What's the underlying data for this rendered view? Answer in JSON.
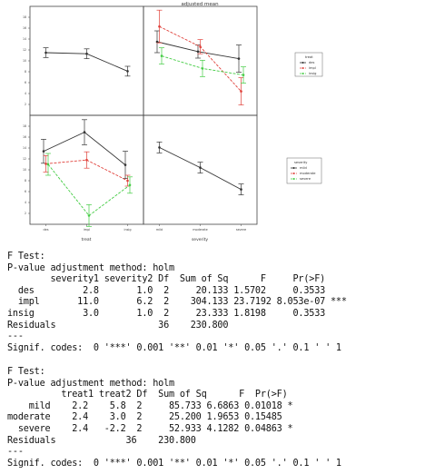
{
  "panels": {
    "top_title": "adjusted mean",
    "x_axis_bottom_left": "treat",
    "x_axis_bottom_right": "severity",
    "legend_treat": {
      "title": "treat",
      "items": [
        "des",
        "impl",
        "insig"
      ]
    },
    "legend_severity": {
      "title": "severity",
      "items": [
        "mild",
        "moderate",
        "severe"
      ]
    },
    "colors": {
      "black": "#333333",
      "red": "#e0403a",
      "green": "#44cc44",
      "grey": "#666666"
    }
  },
  "chart_data": [
    {
      "type": "line",
      "panel": "top-left",
      "categories": [
        "des",
        "impl",
        "insig"
      ],
      "series": [
        {
          "values": [
            11.5,
            11.3,
            8.1
          ],
          "ci": [
            0.9,
            0.9,
            0.9
          ]
        }
      ],
      "ylim": [
        0,
        20
      ],
      "ytick_labels": [
        "0",
        "2",
        "4",
        "6",
        "8",
        "10",
        "12",
        "14",
        "16",
        "18"
      ]
    },
    {
      "type": "line",
      "panel": "top-right",
      "categories": [
        "mild",
        "moderate",
        "severe"
      ],
      "series": [
        {
          "name": "des",
          "color": "#333333",
          "values": [
            13.5,
            11.7,
            10.4
          ],
          "ci": [
            2.0,
            1.2,
            2.5
          ]
        },
        {
          "name": "impl",
          "color": "#e0403a",
          "values": [
            16.3,
            12.6,
            4.4
          ],
          "ci": [
            3.0,
            1.3,
            2.5
          ]
        },
        {
          "name": "insig",
          "color": "#44cc44",
          "values": [
            10.9,
            8.6,
            7.4
          ],
          "ci": [
            1.5,
            1.5,
            1.5
          ]
        }
      ],
      "ylim": [
        0,
        20
      ]
    },
    {
      "type": "line",
      "panel": "bottom-left",
      "categories": [
        "des",
        "impl",
        "insig"
      ],
      "series": [
        {
          "name": "mild",
          "color": "#333333",
          "values": [
            13.4,
            16.9,
            10.9
          ],
          "ci": [
            2.2,
            2.3,
            2.5
          ]
        },
        {
          "name": "moderate",
          "color": "#e0403a",
          "values": [
            11.1,
            11.8,
            8.0
          ],
          "ci": [
            1.5,
            1.5,
            1.0
          ]
        },
        {
          "name": "severe",
          "color": "#44cc44",
          "values": [
            11.0,
            1.6,
            7.2
          ],
          "ci": [
            2.0,
            2.0,
            1.5
          ]
        }
      ],
      "ylim": [
        0,
        20
      ],
      "ytick_labels": [
        "0",
        "2",
        "4",
        "6",
        "8",
        "10",
        "12",
        "14",
        "16",
        "18"
      ]
    },
    {
      "type": "line",
      "panel": "bottom-right",
      "categories": [
        "mild",
        "moderate",
        "severe"
      ],
      "series": [
        {
          "values": [
            14.1,
            10.4,
            6.4
          ],
          "ci": [
            1.0,
            1.0,
            1.0
          ]
        }
      ],
      "ylim": [
        0,
        20
      ]
    }
  ],
  "output": {
    "ftest1": {
      "lines": [
        "F Test:",
        "P-value adjustment method: holm",
        "        severity1 severity2 Df  Sum of Sq      F     Pr(>F)",
        "  des         2.8       1.0  2     20.133 1.5702     0.3533",
        "  impl       11.0       6.2  2    304.133 23.7192 8.053e-07 ***",
        "insig         3.0       1.0  2     23.333 1.8198     0.3533",
        "Residuals                   36    230.800",
        "---",
        "Signif. codes:  0 '***' 0.001 '**' 0.01 '*' 0.05 '.' 0.1 ' ' 1"
      ]
    },
    "ftest2": {
      "lines": [
        "F Test:",
        "P-value adjustment method: holm",
        "          treat1 treat2 Df  Sum of Sq      F  Pr(>F)",
        "    mild    2.2    5.8  2     85.733 6.6863 0.01018 *",
        "moderate    2.4    3.0  2     25.200 1.9653 0.15485",
        "  severe    2.4   -2.2  2     52.933 4.1282 0.04863 *",
        "Residuals             36    230.800",
        "---",
        "Signif. codes:  0 '***' 0.001 '**' 0.01 '*' 0.05 '.' 0.1 ' ' 1"
      ]
    }
  }
}
